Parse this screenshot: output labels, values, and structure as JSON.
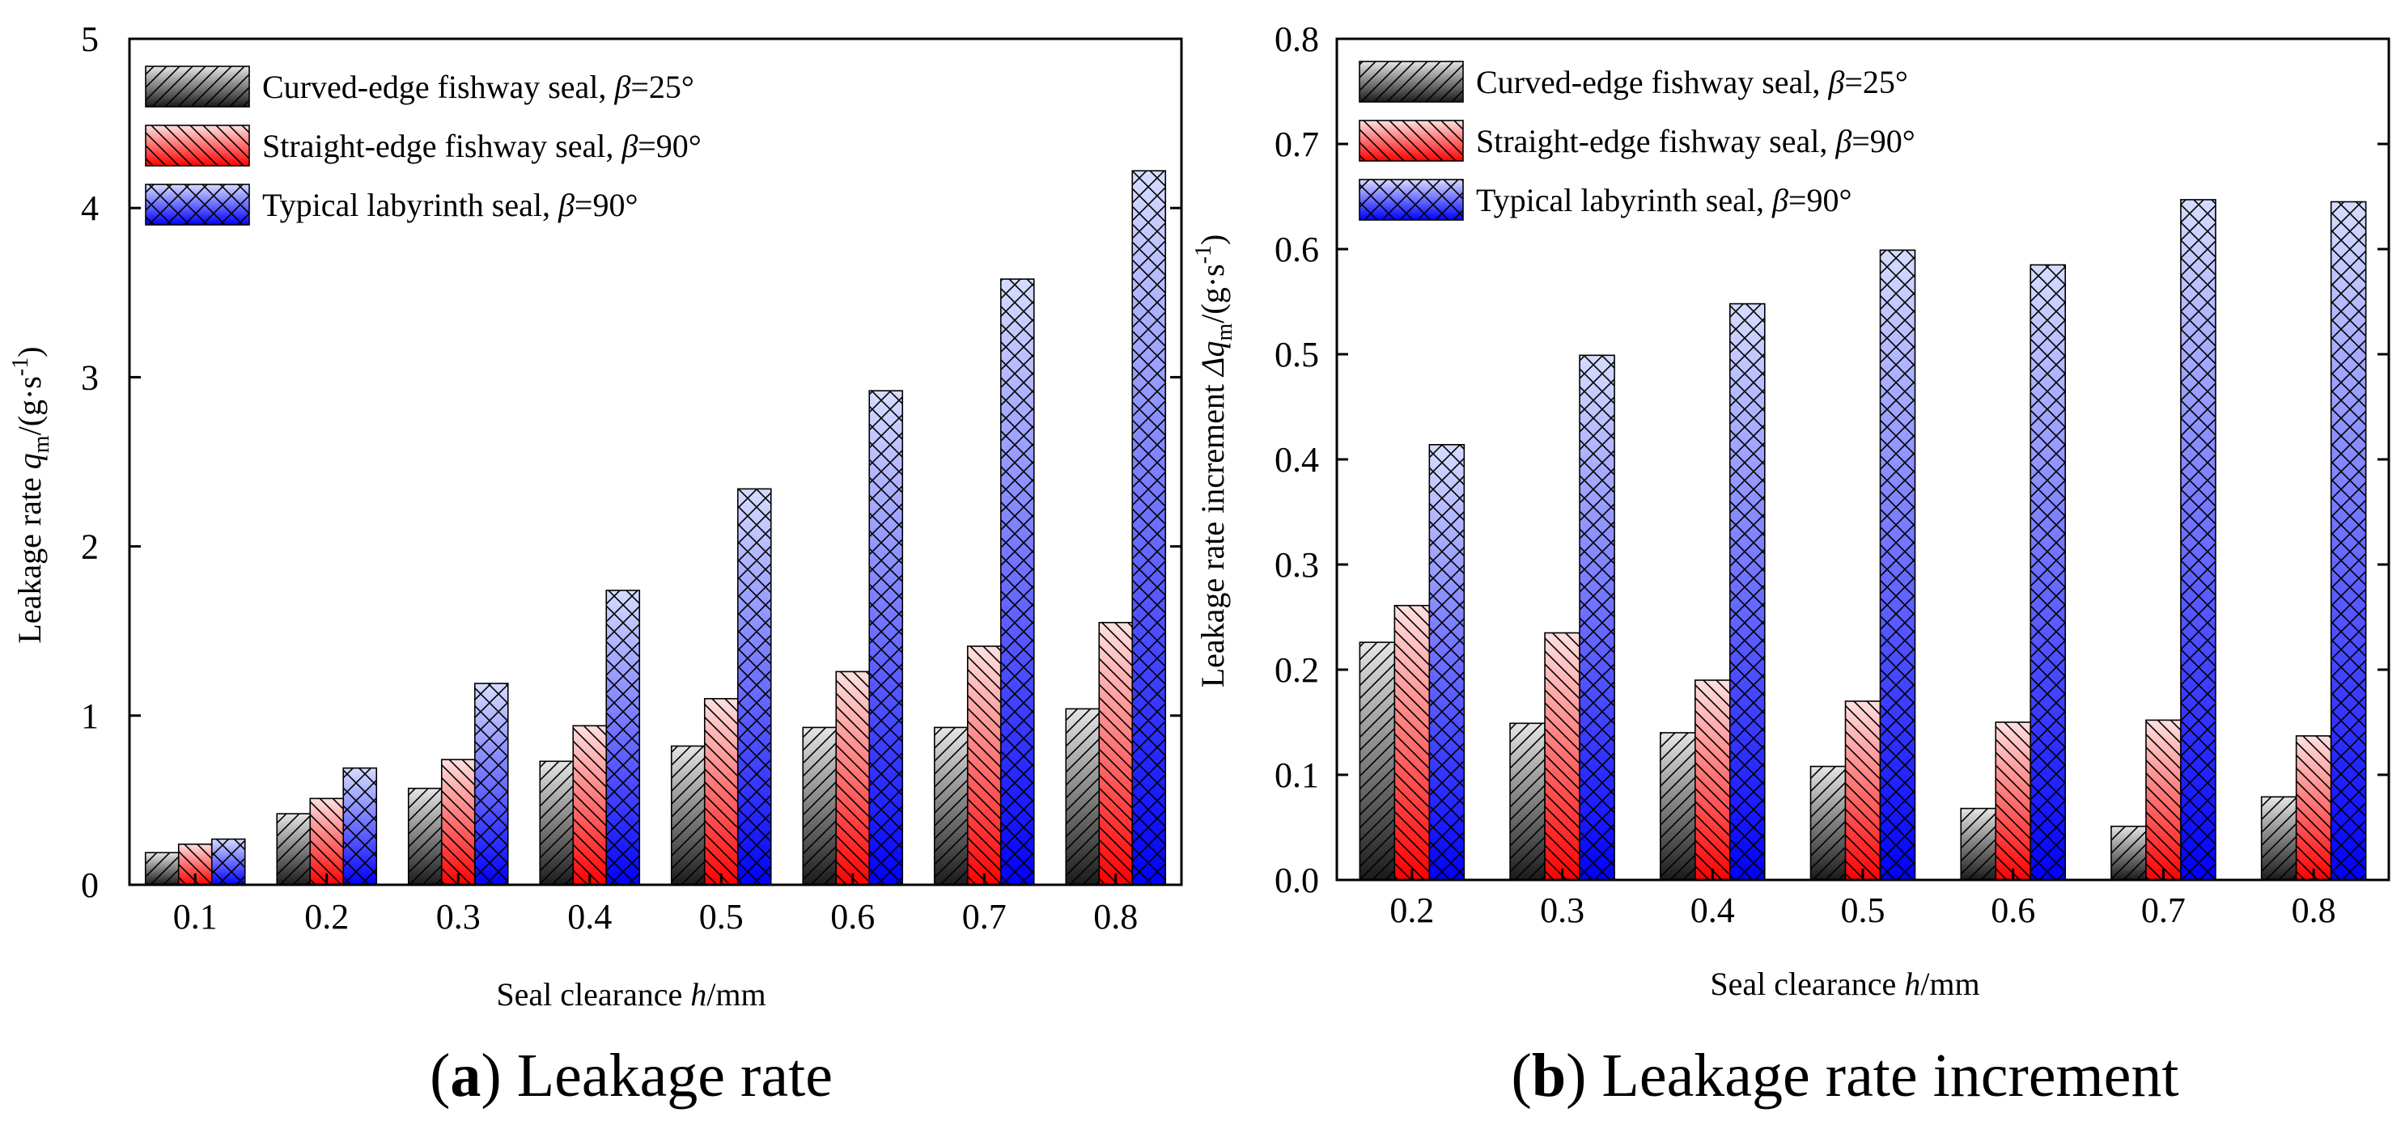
{
  "chart_data": [
    {
      "type": "bar",
      "caption_letter": "a",
      "caption_text": "Leakage rate",
      "xlabel_prefix": "Seal clearance ",
      "xlabel_var": "h",
      "xlabel_unit": "/mm",
      "ylabel_prefix": "Leakage rate ",
      "ylabel_var": "q",
      "ylabel_sub": "m",
      "ylabel_unit": "/(g·s",
      "ylabel_exp": "-1",
      "ylabel_close": ")",
      "categories": [
        "0.1",
        "0.2",
        "0.3",
        "0.4",
        "0.5",
        "0.6",
        "0.7",
        "0.8"
      ],
      "ylim": [
        0,
        5
      ],
      "yticks": [
        "0",
        "1",
        "2",
        "3",
        "4",
        "5"
      ],
      "legend_position": "top-left",
      "series": [
        {
          "name": "Curved-edge fishway seal, ",
          "beta": "β",
          "suffix": "=25°",
          "color": "#808080",
          "values": [
            0.19,
            0.42,
            0.57,
            0.73,
            0.82,
            0.93,
            0.93,
            1.04
          ]
        },
        {
          "name": "Straight-edge fishway seal, ",
          "beta": "β",
          "suffix": "=90°",
          "color": "#ff0000",
          "values": [
            0.24,
            0.51,
            0.74,
            0.94,
            1.1,
            1.26,
            1.41,
            1.55
          ]
        },
        {
          "name": "Typical labyrinth seal, ",
          "beta": "β",
          "suffix": "=90°",
          "color": "#0000ff",
          "values": [
            0.27,
            0.69,
            1.19,
            1.74,
            2.34,
            2.92,
            3.58,
            4.22
          ]
        }
      ]
    },
    {
      "type": "bar",
      "caption_letter": "b",
      "caption_text": "Leakage rate increment",
      "xlabel_prefix": "Seal clearance ",
      "xlabel_var": "h",
      "xlabel_unit": "/mm",
      "ylabel_prefix": "Leakage rate increment ",
      "ylabel_var": "Δq",
      "ylabel_sub": "m",
      "ylabel_unit": "/(g·s",
      "ylabel_exp": "-1",
      "ylabel_close": ")",
      "categories": [
        "0.2",
        "0.3",
        "0.4",
        "0.5",
        "0.6",
        "0.7",
        "0.8"
      ],
      "ylim": [
        0,
        0.8
      ],
      "yticks": [
        "0.0",
        "0.1",
        "0.2",
        "0.3",
        "0.4",
        "0.5",
        "0.6",
        "0.7",
        "0.8"
      ],
      "legend_position": "top-left",
      "series": [
        {
          "name": "Curved-edge fishway seal, ",
          "beta": "β",
          "suffix": "=25°",
          "color": "#808080",
          "values": [
            0.226,
            0.149,
            0.14,
            0.108,
            0.068,
            0.051,
            0.079
          ]
        },
        {
          "name": "Straight-edge fishway seal, ",
          "beta": "β",
          "suffix": "=90°",
          "color": "#ff0000",
          "values": [
            0.261,
            0.235,
            0.19,
            0.17,
            0.15,
            0.152,
            0.137
          ]
        },
        {
          "name": "Typical labyrinth seal, ",
          "beta": "β",
          "suffix": "=90°",
          "color": "#0000ff",
          "values": [
            0.414,
            0.499,
            0.548,
            0.599,
            0.585,
            0.647,
            0.645
          ]
        }
      ]
    }
  ]
}
